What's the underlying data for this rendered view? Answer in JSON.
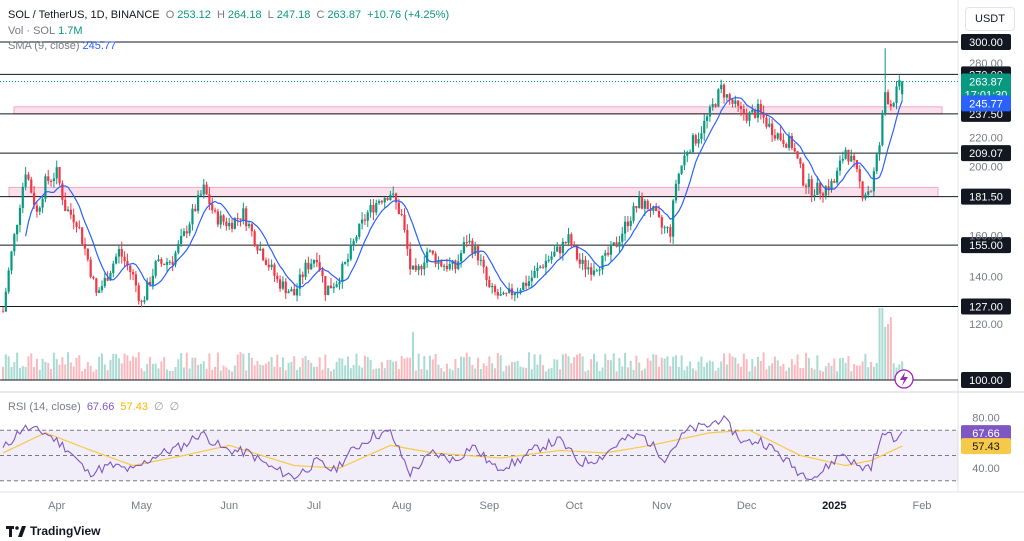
{
  "header": {
    "symbol": "SOL / TetherUS, 1D, BINANCE",
    "open_label": "O",
    "open": "253.12",
    "high_label": "H",
    "high": "264.18",
    "low_label": "L",
    "low": "247.18",
    "close_label": "C",
    "close": "263.87",
    "change": "+10.76 (+4.25%)",
    "vol_label": "Vol · SOL",
    "vol": "1.7M",
    "sma_label": "SMA (9, close)",
    "sma": "245.77",
    "currency": "USDT"
  },
  "rsi_legend": {
    "label": "RSI (14, close)",
    "rsi": "67.66",
    "ma": "57.43",
    "extra1": "∅",
    "extra2": "∅"
  },
  "brand": "TradingView",
  "colors": {
    "up": "#089981",
    "down": "#f23645",
    "sma": "#2962ff",
    "rsi": "#7e57c2",
    "rsi_ma": "#f7c948",
    "zone": "#f8c8dc"
  },
  "chart_data": {
    "type": "candlestick",
    "x_ticks": [
      "Apr",
      "May",
      "Jun",
      "Jul",
      "Aug",
      "Sep",
      "Oct",
      "Nov",
      "Dec",
      "2025",
      "Feb"
    ],
    "y_ticks": [
      "280.00",
      "220.00",
      "200.00",
      "160.00",
      "140.00",
      "120.00"
    ],
    "y_scale": "log",
    "ylim": [
      100,
      300
    ],
    "levels": [
      "300.00",
      "270.00",
      "237.50",
      "209.07",
      "181.50",
      "155.00",
      "127.00",
      "100.00"
    ],
    "level_values": [
      300,
      270,
      237.5,
      209.07,
      181.5,
      155,
      127,
      100
    ],
    "zones": [
      [
        237.5,
        243
      ],
      [
        181.5,
        187
      ]
    ],
    "last_price": "263.87",
    "countdown": "17:01:30",
    "sma_value": "245.77",
    "price_path": [
      {
        "date": "2024-03-13",
        "close": 125
      },
      {
        "date": "2024-03-18",
        "close": 168
      },
      {
        "date": "2024-03-21",
        "close": 198
      },
      {
        "date": "2024-03-25",
        "close": 172
      },
      {
        "date": "2024-03-28",
        "close": 190
      },
      {
        "date": "2024-04-01",
        "close": 196
      },
      {
        "date": "2024-04-04",
        "close": 175
      },
      {
        "date": "2024-04-08",
        "close": 168
      },
      {
        "date": "2024-04-12",
        "close": 148
      },
      {
        "date": "2024-04-15",
        "close": 132
      },
      {
        "date": "2024-04-18",
        "close": 138
      },
      {
        "date": "2024-04-23",
        "close": 152
      },
      {
        "date": "2024-04-28",
        "close": 140
      },
      {
        "date": "2024-05-01",
        "close": 128
      },
      {
        "date": "2024-05-06",
        "close": 145
      },
      {
        "date": "2024-05-12",
        "close": 148
      },
      {
        "date": "2024-05-16",
        "close": 160
      },
      {
        "date": "2024-05-20",
        "close": 175
      },
      {
        "date": "2024-05-23",
        "close": 186
      },
      {
        "date": "2024-05-27",
        "close": 170
      },
      {
        "date": "2024-06-01",
        "close": 166
      },
      {
        "date": "2024-06-06",
        "close": 172
      },
      {
        "date": "2024-06-10",
        "close": 158
      },
      {
        "date": "2024-06-14",
        "close": 148
      },
      {
        "date": "2024-06-18",
        "close": 138
      },
      {
        "date": "2024-06-24",
        "close": 132
      },
      {
        "date": "2024-06-28",
        "close": 144
      },
      {
        "date": "2024-07-02",
        "close": 150
      },
      {
        "date": "2024-07-05",
        "close": 134
      },
      {
        "date": "2024-07-09",
        "close": 138
      },
      {
        "date": "2024-07-13",
        "close": 148
      },
      {
        "date": "2024-07-16",
        "close": 160
      },
      {
        "date": "2024-07-20",
        "close": 172
      },
      {
        "date": "2024-07-24",
        "close": 180
      },
      {
        "date": "2024-07-28",
        "close": 184
      },
      {
        "date": "2024-08-01",
        "close": 170
      },
      {
        "date": "2024-08-04",
        "close": 144
      },
      {
        "date": "2024-08-06",
        "close": 140
      },
      {
        "date": "2024-08-10",
        "close": 152
      },
      {
        "date": "2024-08-15",
        "close": 146
      },
      {
        "date": "2024-08-20",
        "close": 144
      },
      {
        "date": "2024-08-24",
        "close": 158
      },
      {
        "date": "2024-08-28",
        "close": 150
      },
      {
        "date": "2024-09-01",
        "close": 134
      },
      {
        "date": "2024-09-06",
        "close": 130
      },
      {
        "date": "2024-09-10",
        "close": 134
      },
      {
        "date": "2024-09-15",
        "close": 138
      },
      {
        "date": "2024-09-20",
        "close": 146
      },
      {
        "date": "2024-09-25",
        "close": 152
      },
      {
        "date": "2024-09-29",
        "close": 158
      },
      {
        "date": "2024-10-03",
        "close": 146
      },
      {
        "date": "2024-10-07",
        "close": 144
      },
      {
        "date": "2024-10-12",
        "close": 148
      },
      {
        "date": "2024-10-16",
        "close": 156
      },
      {
        "date": "2024-10-20",
        "close": 168
      },
      {
        "date": "2024-10-24",
        "close": 178
      },
      {
        "date": "2024-10-28",
        "close": 175
      },
      {
        "date": "2024-11-01",
        "close": 164
      },
      {
        "date": "2024-11-04",
        "close": 162
      },
      {
        "date": "2024-11-06",
        "close": 190
      },
      {
        "date": "2024-11-10",
        "close": 212
      },
      {
        "date": "2024-11-14",
        "close": 222
      },
      {
        "date": "2024-11-18",
        "close": 238
      },
      {
        "date": "2024-11-22",
        "close": 258
      },
      {
        "date": "2024-11-25",
        "close": 248
      },
      {
        "date": "2024-11-29",
        "close": 238
      },
      {
        "date": "2024-12-02",
        "close": 236
      },
      {
        "date": "2024-12-05",
        "close": 240
      },
      {
        "date": "2024-12-09",
        "close": 228
      },
      {
        "date": "2024-12-13",
        "close": 220
      },
      {
        "date": "2024-12-17",
        "close": 215
      },
      {
        "date": "2024-12-21",
        "close": 192
      },
      {
        "date": "2024-12-24",
        "close": 186
      },
      {
        "date": "2024-12-28",
        "close": 186
      },
      {
        "date": "2025-01-01",
        "close": 190
      },
      {
        "date": "2025-01-05",
        "close": 212
      },
      {
        "date": "2025-01-08",
        "close": 200
      },
      {
        "date": "2025-01-11",
        "close": 184
      },
      {
        "date": "2025-01-14",
        "close": 186
      },
      {
        "date": "2025-01-17",
        "close": 215
      },
      {
        "date": "2025-01-19",
        "close": 255
      },
      {
        "date": "2025-01-21",
        "close": 245
      },
      {
        "date": "2025-01-23",
        "close": 255
      },
      {
        "date": "2025-01-25",
        "close": 263.87
      }
    ],
    "rsi": {
      "y_ticks": [
        "80.00",
        "40.00"
      ],
      "ylim": [
        25,
        90
      ],
      "bands": [
        70,
        50,
        30
      ],
      "current": "67.66",
      "ma_current": "57.43",
      "path": [
        {
          "date": "2024-03-13",
          "value": 55
        },
        {
          "date": "2024-03-20",
          "value": 72
        },
        {
          "date": "2024-03-28",
          "value": 68
        },
        {
          "date": "2024-04-05",
          "value": 55
        },
        {
          "date": "2024-04-12",
          "value": 36
        },
        {
          "date": "2024-04-20",
          "value": 42
        },
        {
          "date": "2024-04-28",
          "value": 38
        },
        {
          "date": "2024-05-06",
          "value": 50
        },
        {
          "date": "2024-05-16",
          "value": 58
        },
        {
          "date": "2024-05-22",
          "value": 68
        },
        {
          "date": "2024-05-30",
          "value": 55
        },
        {
          "date": "2024-06-08",
          "value": 52
        },
        {
          "date": "2024-06-16",
          "value": 40
        },
        {
          "date": "2024-06-24",
          "value": 33
        },
        {
          "date": "2024-07-02",
          "value": 45
        },
        {
          "date": "2024-07-08",
          "value": 38
        },
        {
          "date": "2024-07-15",
          "value": 55
        },
        {
          "date": "2024-07-22",
          "value": 66
        },
        {
          "date": "2024-07-28",
          "value": 68
        },
        {
          "date": "2024-08-04",
          "value": 36
        },
        {
          "date": "2024-08-12",
          "value": 52
        },
        {
          "date": "2024-08-20",
          "value": 46
        },
        {
          "date": "2024-08-26",
          "value": 58
        },
        {
          "date": "2024-09-03",
          "value": 40
        },
        {
          "date": "2024-09-10",
          "value": 44
        },
        {
          "date": "2024-09-18",
          "value": 56
        },
        {
          "date": "2024-09-26",
          "value": 62
        },
        {
          "date": "2024-10-03",
          "value": 44
        },
        {
          "date": "2024-10-10",
          "value": 48
        },
        {
          "date": "2024-10-18",
          "value": 62
        },
        {
          "date": "2024-10-25",
          "value": 66
        },
        {
          "date": "2024-11-02",
          "value": 48
        },
        {
          "date": "2024-11-10",
          "value": 70
        },
        {
          "date": "2024-11-18",
          "value": 74
        },
        {
          "date": "2024-11-22",
          "value": 80
        },
        {
          "date": "2024-11-30",
          "value": 60
        },
        {
          "date": "2024-12-06",
          "value": 62
        },
        {
          "date": "2024-12-12",
          "value": 52
        },
        {
          "date": "2024-12-20",
          "value": 36
        },
        {
          "date": "2024-12-26",
          "value": 34
        },
        {
          "date": "2025-01-04",
          "value": 52
        },
        {
          "date": "2025-01-10",
          "value": 40
        },
        {
          "date": "2025-01-14",
          "value": 42
        },
        {
          "date": "2025-01-19",
          "value": 70
        },
        {
          "date": "2025-01-22",
          "value": 62
        },
        {
          "date": "2025-01-25",
          "value": 67.66
        }
      ],
      "ma_path": [
        {
          "date": "2024-03-13",
          "value": 52
        },
        {
          "date": "2024-03-28",
          "value": 68
        },
        {
          "date": "2024-04-12",
          "value": 55
        },
        {
          "date": "2024-04-28",
          "value": 42
        },
        {
          "date": "2024-05-16",
          "value": 50
        },
        {
          "date": "2024-06-01",
          "value": 58
        },
        {
          "date": "2024-06-24",
          "value": 42
        },
        {
          "date": "2024-07-10",
          "value": 40
        },
        {
          "date": "2024-07-28",
          "value": 58
        },
        {
          "date": "2024-08-12",
          "value": 52
        },
        {
          "date": "2024-09-05",
          "value": 48
        },
        {
          "date": "2024-09-26",
          "value": 54
        },
        {
          "date": "2024-10-12",
          "value": 52
        },
        {
          "date": "2024-10-28",
          "value": 58
        },
        {
          "date": "2024-11-18",
          "value": 68
        },
        {
          "date": "2024-12-02",
          "value": 70
        },
        {
          "date": "2024-12-20",
          "value": 50
        },
        {
          "date": "2025-01-05",
          "value": 42
        },
        {
          "date": "2025-01-14",
          "value": 46
        },
        {
          "date": "2025-01-25",
          "value": 57.43
        }
      ]
    }
  }
}
